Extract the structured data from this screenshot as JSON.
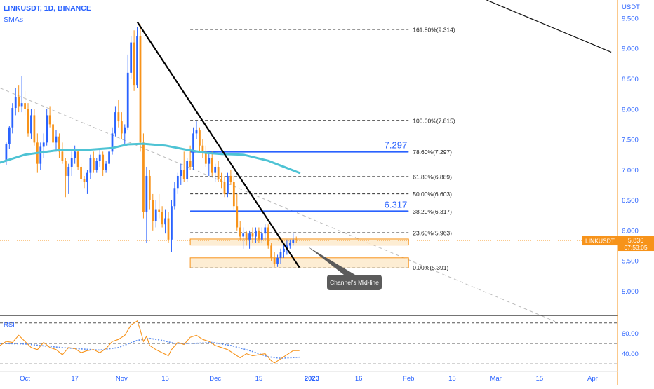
{
  "header": {
    "title": "LINKUSDT, 1D, BINANCE",
    "indicator": "SMAs"
  },
  "colors": {
    "up_candle": "#2962ff",
    "down_candle": "#f7931a",
    "sma": "#4ec3d4",
    "fib_line": "#333333",
    "key_level": "#2962ff",
    "zone_fill": "#fde9c8",
    "zone_border": "#f7931a",
    "trendline": "#000000",
    "channel_line": "#bbbbbb",
    "price_line": "#f7931a",
    "rsi_line": "#f7931a",
    "rsi_ma": "#5b8def",
    "axis_accent": "#f7931a"
  },
  "chart_data": [
    {
      "type": "candlestick",
      "title": "LINKUSDT, 1D, BINANCE",
      "y_axis_label": "USDT",
      "y_ticks": [
        "9.500",
        "9.000",
        "8.500",
        "8.000",
        "7.500",
        "7.000",
        "6.500",
        "6.000",
        "5.500",
        "5.000"
      ],
      "ylim": [
        4.6,
        9.8
      ],
      "x_ticks": [
        "Oct",
        "17",
        "Nov",
        "15",
        "Dec",
        "15",
        "2023",
        "16",
        "Feb",
        "15",
        "Mar",
        "15",
        "Apr"
      ],
      "x_tick_days": [
        0,
        16,
        31,
        45,
        61,
        75,
        92,
        107,
        123,
        137,
        151,
        165,
        182
      ],
      "x_range_days": [
        -8,
        190
      ],
      "current_price": {
        "symbol": "LINKUSDT",
        "value": "5.836",
        "countdown": "07:53:05"
      },
      "candles": [
        [
          -6,
          7.15,
          7.45,
          7.08,
          7.42
        ],
        [
          -5,
          7.42,
          7.72,
          7.35,
          7.7
        ],
        [
          -4,
          7.7,
          8.1,
          7.6,
          8.02
        ],
        [
          -3,
          8.02,
          8.35,
          7.9,
          8.2
        ],
        [
          -2,
          8.2,
          8.4,
          7.95,
          8.05
        ],
        [
          -1,
          8.05,
          8.55,
          7.95,
          8.1
        ],
        [
          0,
          8.1,
          8.3,
          7.9,
          8.0
        ],
        [
          1,
          8.0,
          8.1,
          7.55,
          7.6
        ],
        [
          2,
          7.6,
          8.0,
          7.5,
          7.9
        ],
        [
          3,
          7.9,
          8.0,
          7.4,
          7.45
        ],
        [
          4,
          7.45,
          7.6,
          6.95,
          7.1
        ],
        [
          5,
          7.1,
          7.45,
          7.0,
          7.38
        ],
        [
          6,
          7.38,
          7.6,
          7.2,
          7.45
        ],
        [
          7,
          7.45,
          8.0,
          7.4,
          7.9
        ],
        [
          8,
          7.9,
          8.05,
          7.7,
          7.75
        ],
        [
          9,
          7.75,
          7.8,
          7.4,
          7.45
        ],
        [
          10,
          7.45,
          7.65,
          7.3,
          7.55
        ],
        [
          11,
          7.55,
          7.6,
          7.2,
          7.3
        ],
        [
          12,
          7.3,
          7.45,
          7.1,
          7.15
        ],
        [
          13,
          7.15,
          7.2,
          6.55,
          6.9
        ],
        [
          14,
          6.9,
          7.1,
          6.6,
          7.05
        ],
        [
          15,
          7.05,
          7.3,
          6.9,
          7.2
        ],
        [
          16,
          7.2,
          7.4,
          7.1,
          7.3
        ],
        [
          17,
          7.3,
          7.35,
          7.0,
          7.05
        ],
        [
          18,
          7.05,
          7.1,
          6.8,
          6.85
        ],
        [
          19,
          6.85,
          6.9,
          6.7,
          6.8
        ],
        [
          20,
          6.8,
          7.0,
          6.6,
          6.95
        ],
        [
          21,
          6.95,
          7.25,
          6.85,
          7.2
        ],
        [
          22,
          7.2,
          7.3,
          6.95,
          7.0
        ],
        [
          23,
          7.0,
          7.2,
          6.95,
          7.15
        ],
        [
          24,
          7.15,
          7.35,
          7.05,
          7.25
        ],
        [
          25,
          7.25,
          7.3,
          6.9,
          7.0
        ],
        [
          26,
          7.0,
          7.15,
          6.95,
          7.1
        ],
        [
          27,
          7.1,
          7.35,
          7.05,
          7.3
        ],
        [
          28,
          7.3,
          7.7,
          7.25,
          7.6
        ],
        [
          29,
          7.6,
          8.05,
          7.55,
          7.95
        ],
        [
          30,
          7.95,
          8.15,
          7.7,
          7.8
        ],
        [
          31,
          7.8,
          7.95,
          7.5,
          7.6
        ],
        [
          32,
          7.6,
          7.75,
          7.4,
          7.7
        ],
        [
          33,
          7.7,
          8.9,
          7.65,
          8.6
        ],
        [
          34,
          8.6,
          9.2,
          8.5,
          9.1
        ],
        [
          35,
          9.1,
          9.3,
          8.3,
          8.4
        ],
        [
          36,
          8.4,
          9.35,
          8.35,
          9.2
        ],
        [
          37,
          9.2,
          9.4,
          7.3,
          7.45
        ],
        [
          38,
          7.45,
          7.6,
          6.2,
          6.3
        ],
        [
          39,
          6.3,
          7.05,
          5.8,
          6.9
        ],
        [
          40,
          6.9,
          7.0,
          6.35,
          6.5
        ],
        [
          41,
          6.5,
          6.6,
          6.0,
          6.15
        ],
        [
          42,
          6.15,
          6.5,
          6.05,
          6.35
        ],
        [
          43,
          6.35,
          6.6,
          6.2,
          6.3
        ],
        [
          44,
          6.3,
          6.4,
          6.05,
          6.1
        ],
        [
          45,
          6.1,
          6.35,
          5.95,
          6.2
        ],
        [
          46,
          6.2,
          6.3,
          5.8,
          5.85
        ],
        [
          47,
          5.85,
          6.5,
          5.65,
          6.4
        ],
        [
          48,
          6.4,
          6.8,
          6.35,
          6.7
        ],
        [
          49,
          6.7,
          6.95,
          6.6,
          6.9
        ],
        [
          50,
          6.9,
          7.1,
          6.75,
          7.0
        ],
        [
          51,
          7.0,
          7.3,
          6.8,
          6.85
        ],
        [
          52,
          6.85,
          7.2,
          6.8,
          7.15
        ],
        [
          53,
          7.15,
          7.4,
          7.0,
          7.05
        ],
        [
          54,
          7.05,
          7.7,
          7.0,
          7.6
        ],
        [
          55,
          7.6,
          7.8,
          7.5,
          7.65
        ],
        [
          56,
          7.65,
          7.7,
          7.3,
          7.4
        ],
        [
          57,
          7.4,
          7.5,
          7.2,
          7.3
        ],
        [
          58,
          7.3,
          7.4,
          7.05,
          7.1
        ],
        [
          59,
          7.1,
          7.3,
          6.9,
          7.2
        ],
        [
          60,
          7.2,
          7.3,
          6.9,
          6.95
        ],
        [
          61,
          6.95,
          7.1,
          6.8,
          7.05
        ],
        [
          62,
          7.05,
          7.15,
          6.8,
          6.85
        ],
        [
          63,
          6.85,
          6.95,
          6.7,
          6.8
        ],
        [
          64,
          6.8,
          6.9,
          6.55,
          6.6
        ],
        [
          65,
          6.6,
          6.95,
          6.55,
          6.9
        ],
        [
          66,
          6.9,
          7.0,
          6.75,
          6.8
        ],
        [
          67,
          6.8,
          6.9,
          6.35,
          6.4
        ],
        [
          68,
          6.4,
          6.6,
          6.0,
          6.05
        ],
        [
          69,
          6.05,
          6.15,
          5.85,
          5.9
        ],
        [
          70,
          5.9,
          6.05,
          5.7,
          5.95
        ],
        [
          71,
          5.95,
          6.0,
          5.75,
          5.85
        ],
        [
          72,
          5.85,
          6.0,
          5.7,
          5.95
        ],
        [
          73,
          5.95,
          6.05,
          5.8,
          5.9
        ],
        [
          74,
          5.9,
          6.05,
          5.8,
          6.0
        ],
        [
          75,
          6.0,
          6.05,
          5.8,
          5.85
        ],
        [
          76,
          5.85,
          6.05,
          5.8,
          5.95
        ],
        [
          77,
          5.95,
          6.1,
          5.85,
          6.05
        ],
        [
          78,
          6.05,
          6.1,
          5.7,
          5.75
        ],
        [
          79,
          5.75,
          5.8,
          5.5,
          5.55
        ],
        [
          80,
          5.55,
          5.65,
          5.4,
          5.45
        ],
        [
          81,
          5.45,
          5.6,
          5.4,
          5.55
        ],
        [
          82,
          5.55,
          5.7,
          5.45,
          5.65
        ],
        [
          83,
          5.65,
          5.8,
          5.55,
          5.7
        ],
        [
          84,
          5.7,
          5.85,
          5.6,
          5.75
        ],
        [
          85,
          5.75,
          5.85,
          5.7,
          5.8
        ],
        [
          86,
          5.8,
          5.95,
          5.75,
          5.85
        ],
        [
          87,
          5.85,
          5.9,
          5.8,
          5.836
        ]
      ],
      "sma": [
        [
          -8,
          7.12
        ],
        [
          0,
          7.25
        ],
        [
          10,
          7.32
        ],
        [
          20,
          7.33
        ],
        [
          28,
          7.36
        ],
        [
          33,
          7.42
        ],
        [
          38,
          7.43
        ],
        [
          45,
          7.4
        ],
        [
          52,
          7.33
        ],
        [
          58,
          7.28
        ],
        [
          63,
          7.26
        ],
        [
          70,
          7.25
        ],
        [
          78,
          7.15
        ],
        [
          84,
          7.03
        ],
        [
          88,
          6.95
        ]
      ],
      "fib_levels": [
        {
          "label": "161.80%(9.314)",
          "value": 9.314
        },
        {
          "label": "100.00%(7.815)",
          "value": 7.815
        },
        {
          "label": "78.60%(7.297)",
          "value": 7.297
        },
        {
          "label": "61.80%(6.889)",
          "value": 6.889
        },
        {
          "label": "50.00%(6.603)",
          "value": 6.603
        },
        {
          "label": "38.20%(6.317)",
          "value": 6.317
        },
        {
          "label": "23.60%(5.963)",
          "value": 5.963
        },
        {
          "label": "0.00%(5.391)",
          "value": 5.391
        }
      ],
      "fib_range_days": [
        53,
        123
      ],
      "key_levels": [
        {
          "label": "7.297",
          "value": 7.297
        },
        {
          "label": "6.317",
          "value": 6.317
        }
      ],
      "zones": [
        {
          "low": 5.76,
          "high": 5.86,
          "from": 53,
          "to": 123
        },
        {
          "low": 5.38,
          "high": 5.55,
          "from": 53,
          "to": 123
        }
      ],
      "trendline": [
        [
          36,
          9.44
        ],
        [
          88,
          5.39
        ]
      ],
      "channel_line": [
        [
          -8,
          8.35
        ],
        [
          170,
          4.5
        ]
      ],
      "upper_channel": [
        [
          148,
          10.0
        ],
        [
          188,
          8.94
        ]
      ],
      "callout": {
        "text": "Channel's Mid-line",
        "day": 90,
        "value": 5.78
      }
    },
    {
      "type": "line",
      "title": "RSI",
      "y_ticks": [
        "60.00",
        "40.00"
      ],
      "ylim": [
        24,
        76
      ],
      "levels": [
        70,
        50,
        30
      ],
      "x_range_days": [
        -8,
        190
      ],
      "rsi": [
        [
          -8,
          48
        ],
        [
          -6,
          52
        ],
        [
          -4,
          51
        ],
        [
          -2,
          58
        ],
        [
          0,
          52
        ],
        [
          2,
          46
        ],
        [
          4,
          44
        ],
        [
          6,
          51
        ],
        [
          8,
          46
        ],
        [
          10,
          44
        ],
        [
          12,
          39
        ],
        [
          14,
          46
        ],
        [
          16,
          45
        ],
        [
          18,
          41
        ],
        [
          20,
          43
        ],
        [
          22,
          44
        ],
        [
          24,
          41
        ],
        [
          26,
          45
        ],
        [
          28,
          52
        ],
        [
          30,
          54
        ],
        [
          32,
          58
        ],
        [
          34,
          68
        ],
        [
          36,
          72
        ],
        [
          37,
          63
        ],
        [
          38,
          52
        ],
        [
          39,
          57
        ],
        [
          40,
          48
        ],
        [
          42,
          44
        ],
        [
          44,
          41
        ],
        [
          46,
          38
        ],
        [
          47,
          44
        ],
        [
          49,
          51
        ],
        [
          51,
          49
        ],
        [
          53,
          56
        ],
        [
          55,
          58
        ],
        [
          57,
          54
        ],
        [
          59,
          52
        ],
        [
          61,
          48
        ],
        [
          63,
          46
        ],
        [
          65,
          44
        ],
        [
          67,
          40
        ],
        [
          69,
          36
        ],
        [
          71,
          40
        ],
        [
          73,
          38
        ],
        [
          75,
          39
        ],
        [
          77,
          40
        ],
        [
          79,
          33
        ],
        [
          80,
          31
        ],
        [
          82,
          35
        ],
        [
          84,
          39
        ],
        [
          86,
          43
        ],
        [
          88,
          43
        ]
      ],
      "rsi_ma": [
        [
          -8,
          50
        ],
        [
          0,
          49.5
        ],
        [
          8,
          47
        ],
        [
          16,
          45
        ],
        [
          24,
          43.5
        ],
        [
          30,
          46
        ],
        [
          36,
          53
        ],
        [
          40,
          55
        ],
        [
          44,
          53
        ],
        [
          48,
          50
        ],
        [
          54,
          50
        ],
        [
          60,
          51
        ],
        [
          66,
          48
        ],
        [
          72,
          43
        ],
        [
          78,
          37
        ],
        [
          82,
          35.5
        ],
        [
          88,
          36.5
        ]
      ]
    }
  ]
}
